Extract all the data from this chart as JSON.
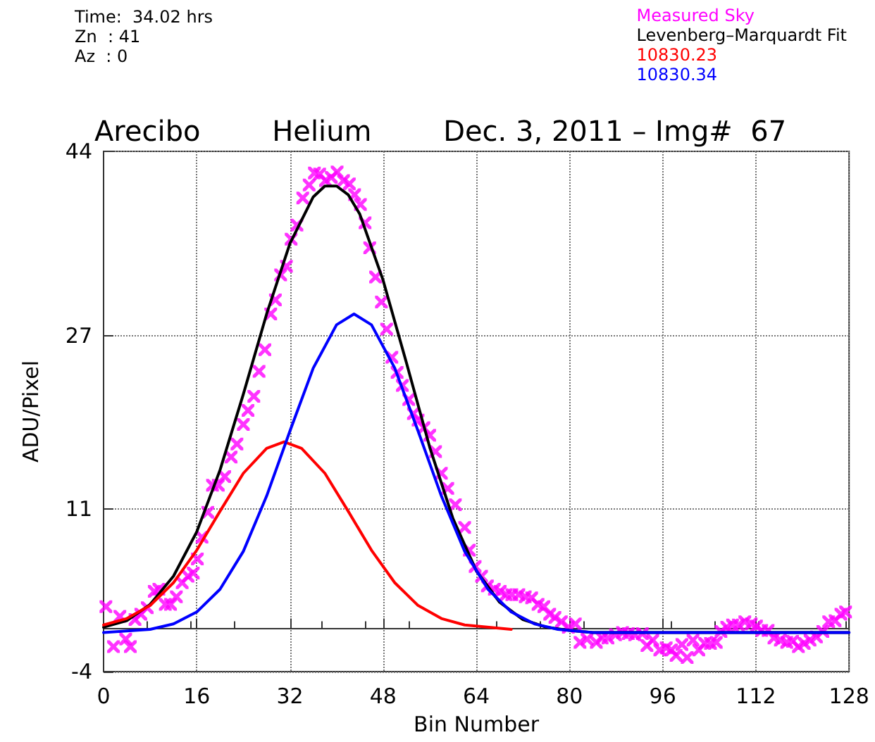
{
  "chart_data": {
    "type": "line",
    "title": "Arecibo        Helium        Dec. 3, 2011 – Img#  67",
    "xlabel": "Bin Number",
    "ylabel": "ADU/Pixel",
    "annotations": [
      "Time:  34.02 hrs",
      "Zn  : 41",
      "Az  : 0"
    ],
    "xlim": [
      0,
      128
    ],
    "xticks": [
      0,
      16,
      32,
      48,
      64,
      80,
      96,
      112,
      128
    ],
    "ylim": [
      -4,
      44
    ],
    "yticks": [
      -4,
      11,
      27,
      44
    ],
    "grid": true,
    "legend": "top right",
    "series": [
      {
        "name": "Measured Sky",
        "type": "scatter",
        "marker": "cross",
        "color": "#ff00ff",
        "x": [
          0.4,
          1.7,
          2.8,
          3.8,
          4.6,
          5.4,
          6.4,
          7.5,
          8.7,
          9.5,
          10.6,
          11.5,
          12.5,
          13.5,
          14.5,
          15.4,
          16.1,
          16.9,
          17.9,
          18.7,
          19.7,
          20.8,
          21.9,
          22.9,
          24.0,
          24.8,
          25.8,
          26.7,
          27.7,
          28.7,
          29.5,
          30.4,
          31.4,
          32.2,
          33.2,
          34.2,
          35.3,
          36.2,
          37.1,
          38.1,
          39.1,
          40.1,
          41.2,
          42.2,
          43.1,
          44.1,
          44.9,
          45.7,
          46.7,
          47.7,
          48.6,
          49.5,
          50.4,
          51.3,
          52.4,
          53.2,
          54.0,
          55.0,
          56.0,
          57.0,
          58.0,
          59.1,
          60.4,
          62.0,
          62.8,
          63.8,
          64.9,
          65.9,
          67.1,
          68.1,
          69.1,
          70.1,
          71.3,
          72.4,
          73.5,
          74.6,
          75.6,
          76.6,
          77.5,
          78.6,
          79.8,
          81.0,
          81.8,
          83.0,
          84.6,
          85.6,
          86.6,
          87.9,
          89.1,
          90.1,
          91.2,
          92.5,
          93.3,
          94.3,
          95.5,
          96.6,
          97.5,
          98.3,
          99.3,
          100.2,
          101.2,
          102.2,
          103.2,
          104.2,
          105.2,
          106.0,
          107.0,
          108.0,
          109.0,
          110.1,
          111.2,
          112.1,
          113.0,
          114.1,
          115.1,
          116.2,
          117.3,
          118.3,
          119.3,
          120.3,
          121.3,
          122.4,
          123.5,
          124.5,
          125.6,
          126.6,
          127.4
        ],
        "values": [
          2.0,
          -1.7,
          1.1,
          -1.0,
          -1.7,
          0.8,
          1.3,
          1.9,
          3.4,
          3.6,
          2.2,
          2.2,
          2.9,
          4.2,
          4.8,
          5.1,
          6.4,
          8.4,
          10.7,
          13.2,
          13.2,
          14.0,
          15.8,
          17.0,
          18.8,
          20.1,
          21.4,
          23.7,
          25.7,
          29.0,
          30.3,
          32.6,
          33.4,
          35.9,
          37.2,
          39.7,
          40.9,
          42.0,
          41.9,
          41.3,
          41.6,
          42.1,
          41.3,
          41.0,
          40.0,
          39.1,
          37.4,
          35.1,
          32.4,
          30.1,
          27.6,
          25.0,
          23.6,
          22.4,
          21.1,
          19.8,
          19.2,
          18.5,
          17.8,
          16.3,
          14.3,
          12.9,
          11.4,
          9.3,
          7.2,
          5.7,
          4.8,
          3.9,
          3.6,
          3.4,
          3.1,
          3.1,
          3.1,
          2.9,
          2.8,
          2.2,
          2.0,
          1.3,
          1.0,
          0.6,
          0.1,
          0.4,
          -1.3,
          -1.0,
          -1.3,
          -0.9,
          -0.9,
          -0.6,
          -0.4,
          -0.5,
          -0.6,
          -0.5,
          -1.6,
          -1.1,
          -2.0,
          -1.8,
          -2.0,
          -2.5,
          -1.5,
          -2.7,
          -1.1,
          -2.0,
          -1.4,
          -1.4,
          -1.3,
          -0.3,
          0.1,
          0.3,
          0.3,
          0.6,
          0.4,
          0.2,
          -0.2,
          -0.2,
          -0.9,
          -1.1,
          -1.3,
          -1.2,
          -1.7,
          -1.4,
          -1.1,
          -0.8,
          -0.3,
          0.6,
          0.7,
          1.3,
          1.5
        ]
      },
      {
        "name": "Levenberg–Marquardt Fit",
        "marker": "none",
        "color": "#000000",
        "x": [
          0,
          4,
          8,
          12,
          16,
          20,
          24,
          28,
          32,
          36,
          38,
          40,
          42,
          44,
          48,
          52,
          56,
          60,
          64,
          68,
          72,
          76,
          80,
          84,
          128
        ],
        "values": [
          0.1,
          0.7,
          2.2,
          4.8,
          8.9,
          14.6,
          21.6,
          29.0,
          35.5,
          39.8,
          40.8,
          40.8,
          40.0,
          38.2,
          32.1,
          24.5,
          16.7,
          10.1,
          5.3,
          2.4,
          0.8,
          0.1,
          -0.2,
          -0.4,
          -0.4
        ]
      },
      {
        "name": "10830.23",
        "marker": "none",
        "color": "#ff0000",
        "x": [
          0,
          4,
          8,
          12,
          16,
          20,
          24,
          28,
          31,
          34,
          38,
          42,
          46,
          50,
          54,
          58,
          62,
          70
        ],
        "values": [
          0.3,
          0.9,
          2.1,
          4.2,
          7.2,
          10.8,
          14.3,
          16.6,
          17.2,
          16.6,
          14.3,
          10.8,
          7.2,
          4.2,
          2.1,
          0.9,
          0.3,
          -0.1
        ]
      },
      {
        "name": "10830.34",
        "marker": "none",
        "color": "#0000ff",
        "x": [
          0,
          8,
          12,
          16,
          20,
          24,
          28,
          32,
          36,
          40,
          43,
          46,
          50,
          54,
          58,
          62,
          66,
          70,
          74,
          78,
          84,
          128
        ],
        "values": [
          -0.4,
          -0.1,
          0.4,
          1.5,
          3.6,
          7.1,
          12.2,
          18.2,
          24.0,
          28.0,
          29.0,
          28.0,
          24.0,
          18.2,
          12.2,
          7.1,
          3.6,
          1.5,
          0.4,
          -0.1,
          -0.4,
          -0.4
        ]
      }
    ]
  }
}
